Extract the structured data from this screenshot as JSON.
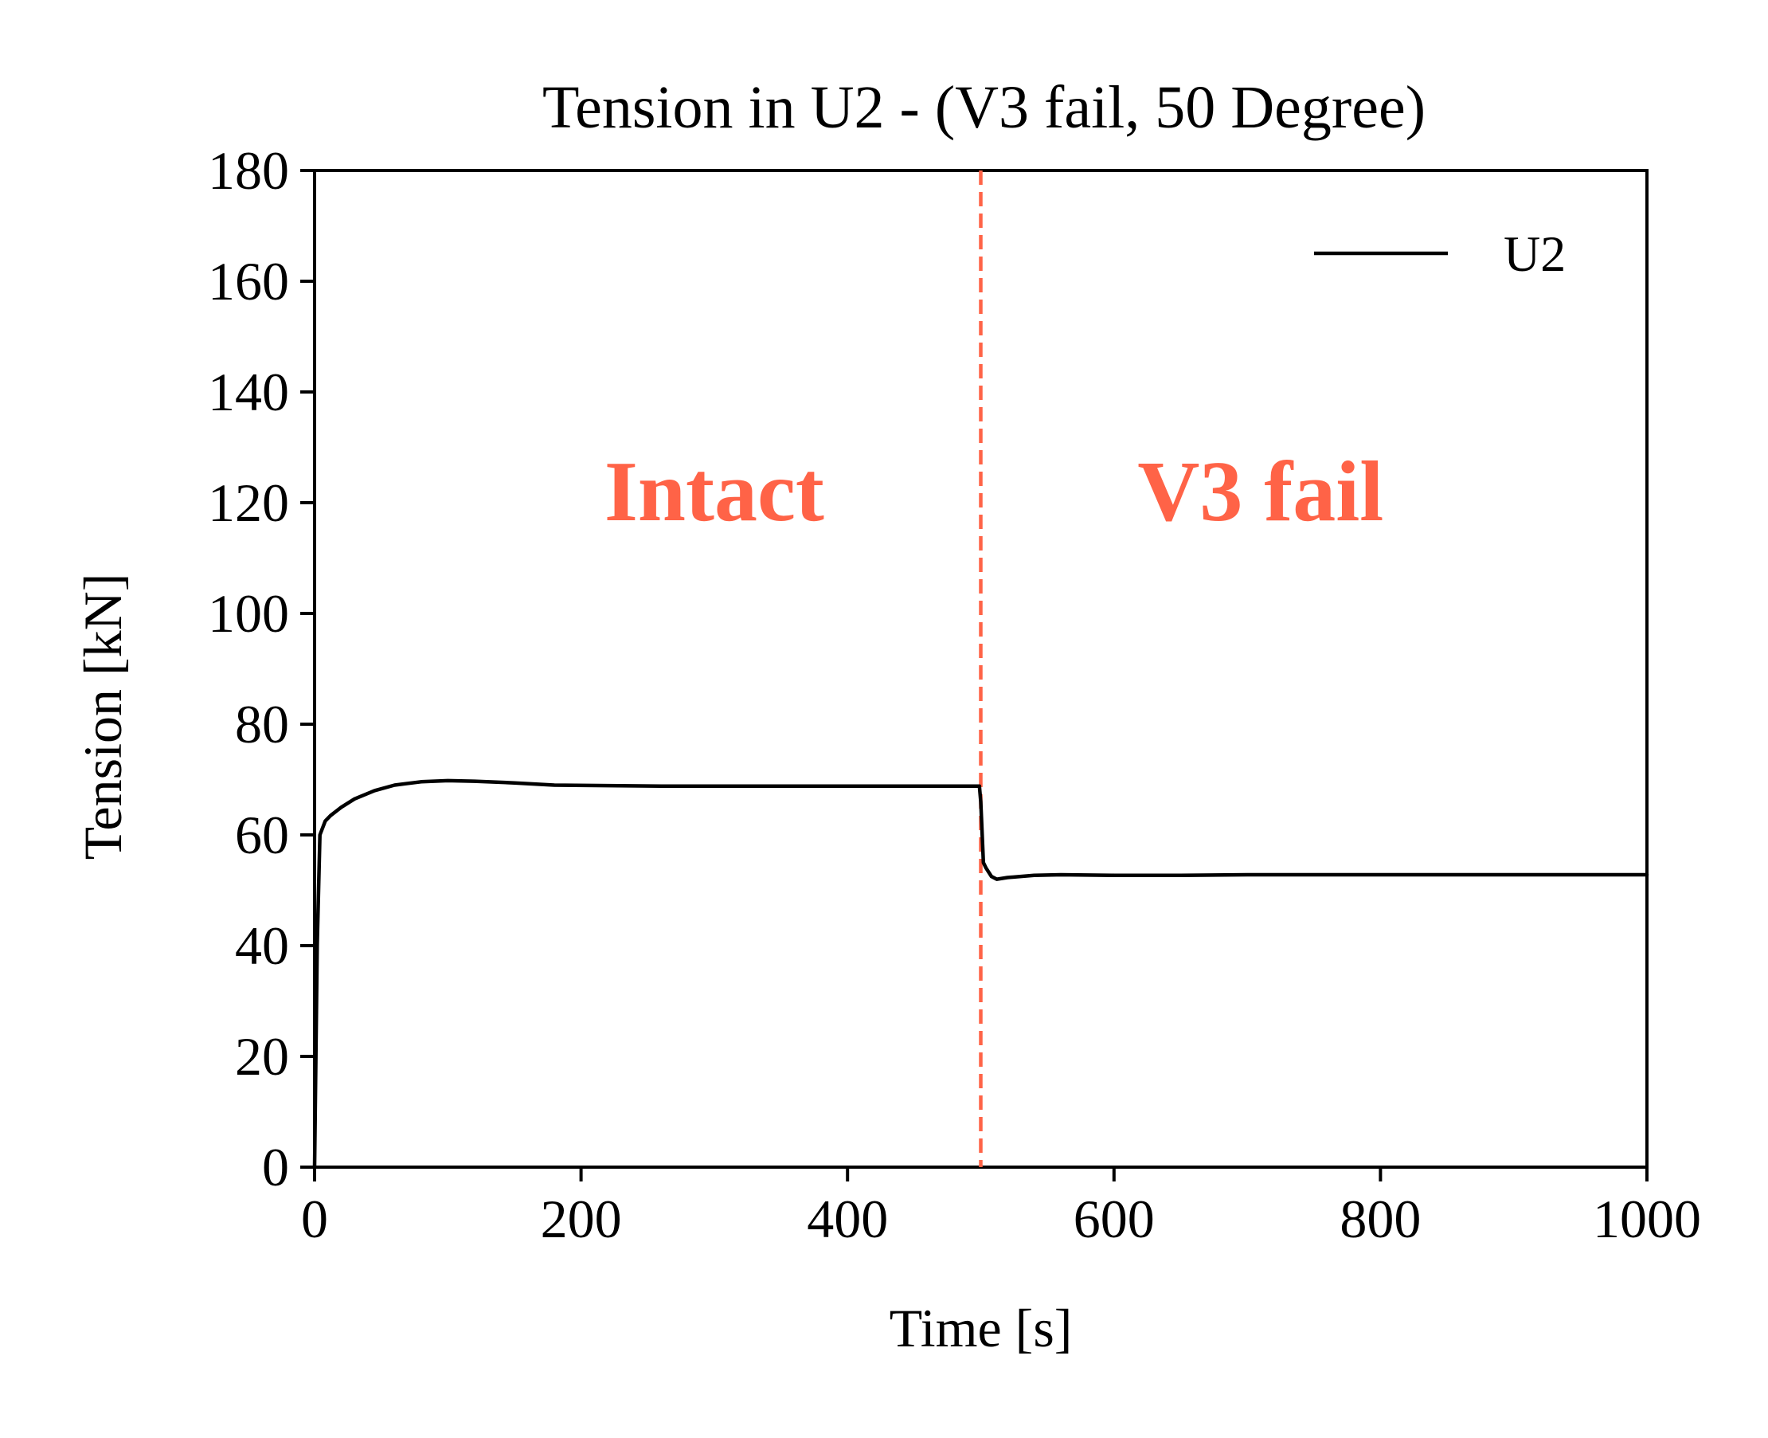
{
  "chart_data": {
    "type": "line",
    "title": "Tension in U2 - (V3 fail, 50 Degree)",
    "xlabel": "Time [s]",
    "ylabel": "Tension [kN]",
    "xlim": [
      0,
      1000
    ],
    "ylim": [
      0,
      180
    ],
    "xticks": [
      0,
      200,
      400,
      600,
      800,
      1000
    ],
    "yticks": [
      0,
      20,
      40,
      60,
      80,
      100,
      120,
      140,
      160,
      180
    ],
    "grid": false,
    "legend": {
      "placement": "top-right"
    },
    "series": [
      {
        "name": "U2",
        "color": "#000000",
        "x": [
          0,
          2,
          4,
          8,
          12,
          20,
          30,
          45,
          60,
          80,
          100,
          120,
          150,
          180,
          220,
          260,
          300,
          350,
          400,
          450,
          499,
          500,
          502,
          504,
          508,
          512,
          520,
          540,
          560,
          600,
          650,
          700,
          800,
          900,
          1000
        ],
        "y": [
          0,
          40,
          60,
          62.5,
          63.5,
          65,
          66.5,
          68,
          69,
          69.6,
          69.8,
          69.7,
          69.4,
          69.0,
          68.9,
          68.8,
          68.8,
          68.8,
          68.8,
          68.8,
          68.8,
          66,
          55,
          54,
          52.5,
          52.0,
          52.3,
          52.7,
          52.8,
          52.7,
          52.7,
          52.8,
          52.8,
          52.8,
          52.8
        ]
      }
    ],
    "reference_lines": [
      {
        "orientation": "vertical",
        "x": 500,
        "style": "dashed",
        "color": "#ff6347"
      }
    ],
    "annotations": [
      {
        "text": "Intact",
        "x": 300,
        "y": 122,
        "color": "#ff6347"
      },
      {
        "text": "V3 fail",
        "x": 710,
        "y": 122,
        "color": "#ff6347"
      }
    ]
  }
}
